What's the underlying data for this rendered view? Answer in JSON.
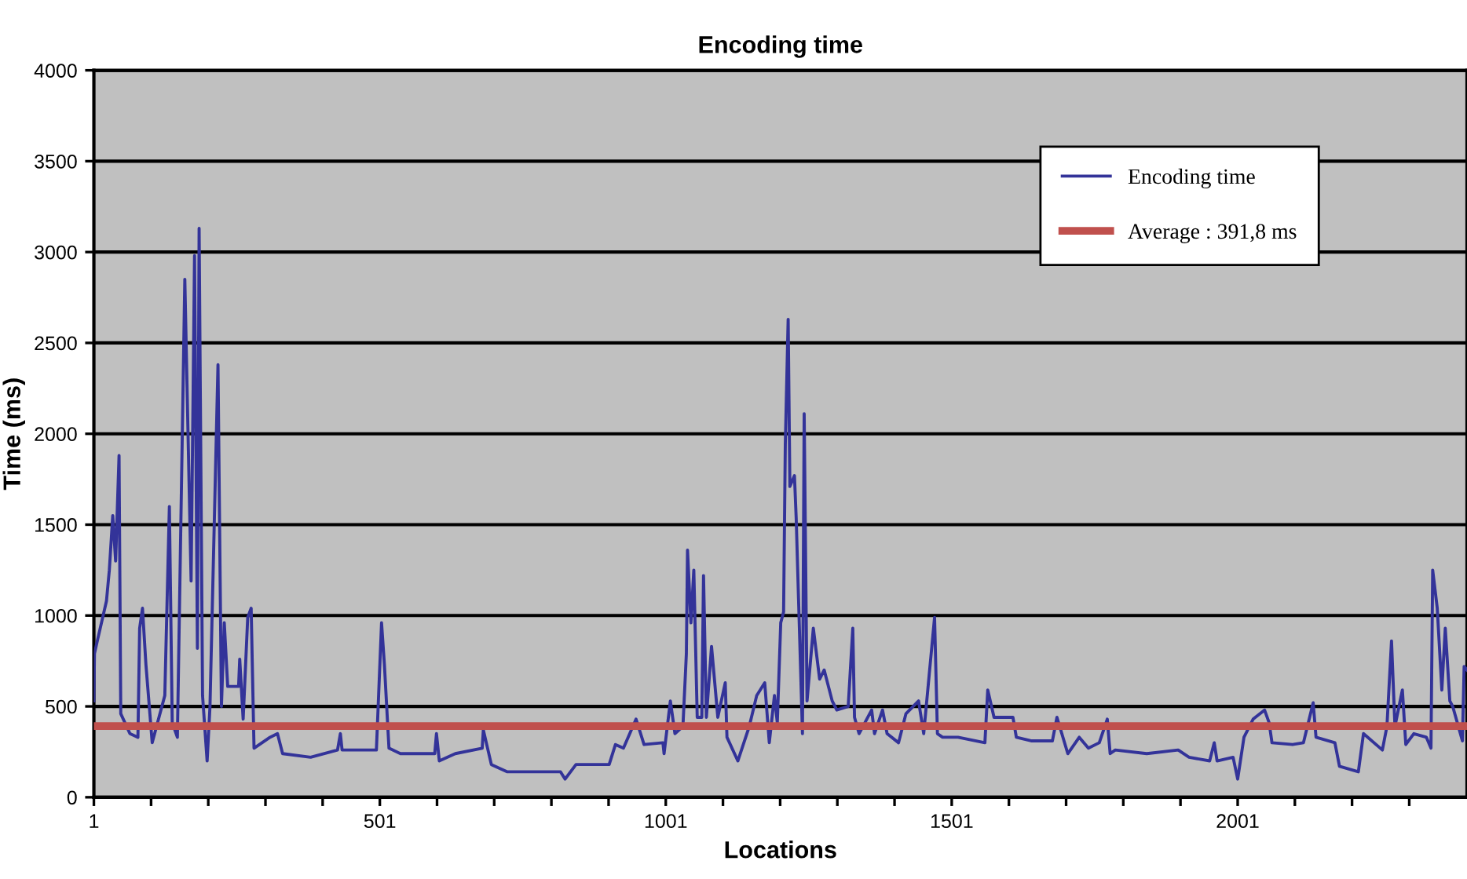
{
  "chart_data": {
    "type": "line",
    "title": "Encoding time",
    "xlabel": "Locations",
    "ylabel": "Time (ms)",
    "xlim": [
      1,
      2402
    ],
    "ylim": [
      0,
      4000
    ],
    "xticks": [
      1,
      {
        "value": 101,
        "label": null
      },
      {
        "value": 201,
        "label": null
      },
      {
        "value": 301,
        "label": null
      },
      {
        "value": 401,
        "label": null
      },
      501,
      {
        "value": 601,
        "label": null
      },
      {
        "value": 701,
        "label": null
      },
      {
        "value": 801,
        "label": null
      },
      {
        "value": 901,
        "label": null
      },
      1001,
      {
        "value": 1101,
        "label": null
      },
      {
        "value": 1201,
        "label": null
      },
      {
        "value": 1301,
        "label": null
      },
      {
        "value": 1401,
        "label": null
      },
      1501,
      {
        "value": 1601,
        "label": null
      },
      {
        "value": 1701,
        "label": null
      },
      {
        "value": 1801,
        "label": null
      },
      {
        "value": 1901,
        "label": null
      },
      2001,
      {
        "value": 2101,
        "label": null
      },
      {
        "value": 2201,
        "label": null
      },
      {
        "value": 2301,
        "label": null
      }
    ],
    "yticks": [
      0,
      500,
      1000,
      1500,
      2000,
      2500,
      3000,
      3500,
      4000
    ],
    "grid": "y",
    "legend": "top right",
    "marker": "none",
    "line_style": "solid",
    "series": [
      {
        "name": "Encoding time",
        "color": "#333399",
        "x": [
          1,
          2,
          7,
          23,
          28,
          34,
          39,
          45,
          48,
          64,
          78,
          81,
          86,
          92,
          103,
          125,
          133,
          138,
          147,
          160,
          171,
          177,
          182,
          185,
          191,
          199,
          204,
          218,
          224,
          229,
          235,
          254,
          256,
          262,
          270,
          276,
          281,
          309,
          322,
          331,
          380,
          427,
          432,
          435,
          495,
          504,
          509,
          517,
          537,
          597,
          600,
          605,
          633,
          680,
          682,
          696,
          724,
          817,
          825,
          844,
          902,
          913,
          927,
          949,
          963,
          996,
          998,
          1009,
          1017,
          1031,
          1037,
          1039,
          1045,
          1050,
          1056,
          1064,
          1067,
          1072,
          1081,
          1092,
          1105,
          1108,
          1127,
          1147,
          1160,
          1174,
          1182,
          1191,
          1196,
          1202,
          1207,
          1210,
          1215,
          1218,
          1226,
          1229,
          1240,
          1243,
          1248,
          1259,
          1270,
          1278,
          1292,
          1300,
          1320,
          1328,
          1331,
          1339,
          1361,
          1366,
          1380,
          1388,
          1408,
          1421,
          1443,
          1452,
          1471,
          1476,
          1485,
          1512,
          1559,
          1564,
          1575,
          1608,
          1614,
          1641,
          1677,
          1685,
          1704,
          1724,
          1740,
          1759,
          1773,
          1778,
          1787,
          1842,
          1897,
          1916,
          1952,
          1960,
          1965,
          1993,
          2001,
          2012,
          2028,
          2048,
          2056,
          2061,
          2097,
          2116,
          2133,
          2138,
          2171,
          2179,
          2212,
          2221,
          2254,
          2262,
          2270,
          2276,
          2289,
          2295,
          2309,
          2331,
          2339,
          2342,
          2350,
          2358,
          2364,
          2372,
          2377,
          2394,
          2397,
          2402
        ],
        "values": [
          530,
          790,
          860,
          1080,
          1250,
          1550,
          1300,
          1880,
          460,
          350,
          330,
          930,
          1040,
          730,
          300,
          560,
          1600,
          410,
          330,
          2850,
          1190,
          2980,
          820,
          3130,
          560,
          200,
          500,
          2380,
          500,
          960,
          610,
          610,
          760,
          430,
          990,
          1040,
          270,
          330,
          350,
          240,
          220,
          260,
          350,
          260,
          260,
          960,
          730,
          270,
          240,
          240,
          350,
          200,
          240,
          270,
          370,
          180,
          140,
          140,
          100,
          180,
          180,
          290,
          270,
          430,
          290,
          300,
          240,
          530,
          350,
          390,
          790,
          1360,
          960,
          1250,
          440,
          440,
          1220,
          440,
          830,
          440,
          630,
          330,
          200,
          390,
          560,
          630,
          300,
          560,
          410,
          960,
          1020,
          1940,
          2630,
          1710,
          1770,
          1540,
          350,
          2110,
          530,
          930,
          650,
          700,
          530,
          480,
          500,
          930,
          440,
          350,
          480,
          350,
          480,
          350,
          300,
          460,
          530,
          350,
          990,
          350,
          330,
          330,
          300,
          590,
          440,
          440,
          330,
          310,
          310,
          440,
          240,
          330,
          270,
          300,
          430,
          240,
          260,
          240,
          260,
          220,
          200,
          300,
          200,
          220,
          100,
          330,
          430,
          480,
          410,
          300,
          290,
          300,
          520,
          330,
          300,
          170,
          140,
          350,
          260,
          390,
          860,
          390,
          590,
          290,
          350,
          330,
          270,
          1250,
          1040,
          590,
          930,
          530,
          500,
          310,
          720,
          700
        ]
      }
    ],
    "ref_lines": [
      {
        "axis": "y",
        "value": 391.8,
        "label": "Average : 391,8 ms",
        "color": "#c0504d",
        "line_style": "solid"
      }
    ]
  }
}
